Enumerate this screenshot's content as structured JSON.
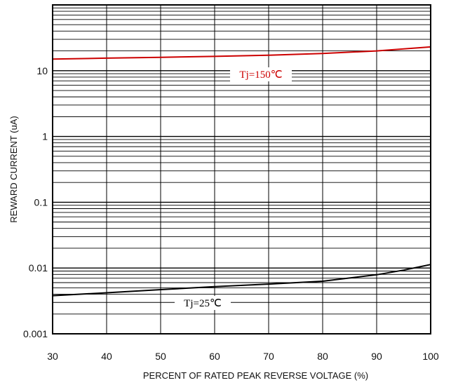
{
  "chart_data": {
    "type": "line",
    "title": "",
    "xlabel": "PERCENT OF RATED PEAK REVERSE VOLTAGE (%)",
    "ylabel": "REWARD CURRENT (uA)",
    "xlim": [
      30,
      100
    ],
    "ylim": [
      0.001,
      100
    ],
    "yscale": "log",
    "grid": true,
    "x_ticks": [
      30,
      40,
      50,
      60,
      70,
      80,
      90,
      100
    ],
    "x_tick_labels": [
      "30",
      "40",
      "50",
      "60",
      "70",
      "80",
      "90",
      "100"
    ],
    "y_ticks": [
      0.001,
      0.01,
      0.1,
      1,
      10
    ],
    "y_tick_labels": [
      "0.001",
      "0.01",
      "0.1",
      "1",
      "10"
    ],
    "series": [
      {
        "name": "Tj=150℃",
        "color": "#cc0000",
        "x": [
          30,
          40,
          50,
          60,
          70,
          80,
          90,
          100
        ],
        "y": [
          15,
          15.5,
          16,
          16.5,
          17.2,
          18.3,
          20,
          23
        ]
      },
      {
        "name": "Tj=25℃",
        "color": "#000000",
        "x": [
          30,
          40,
          50,
          60,
          70,
          80,
          90,
          95,
          100
        ],
        "y": [
          0.0038,
          0.0042,
          0.0047,
          0.0052,
          0.0057,
          0.0063,
          0.0079,
          0.0093,
          0.0113
        ]
      }
    ]
  }
}
